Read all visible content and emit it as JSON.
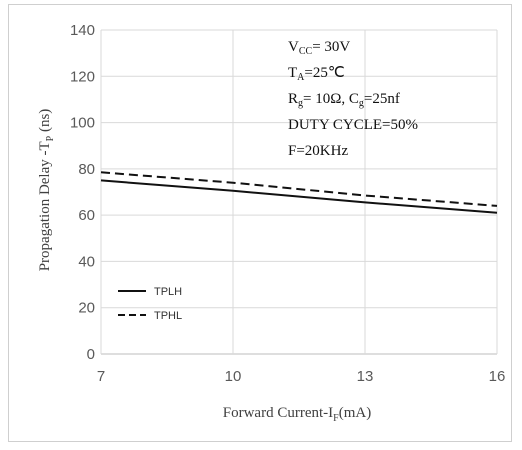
{
  "chart_data": {
    "type": "line",
    "xlabel": "Forward Current-I",
    "xlabel_sub": "F",
    "xlabel_unit": "(mA)",
    "ylabel": "Propagation Delay -T",
    "ylabel_sub": "P",
    "ylabel_unit": " (ns)",
    "xlim": [
      7,
      16
    ],
    "ylim": [
      0,
      140
    ],
    "xticks": [
      7,
      10,
      13,
      16
    ],
    "yticks": [
      0,
      20,
      40,
      60,
      80,
      100,
      120,
      140
    ],
    "grid": true,
    "legend_position": "bottom-left",
    "series": [
      {
        "name": "TPLH",
        "style": "solid",
        "x": [
          7,
          10,
          13,
          16
        ],
        "y": [
          75,
          70.5,
          65.5,
          61
        ]
      },
      {
        "name": "TPHL",
        "style": "dashed",
        "x": [
          7,
          10,
          13,
          16
        ],
        "y": [
          78.5,
          74,
          68.5,
          64
        ]
      }
    ],
    "conditions": [
      {
        "parts": [
          {
            "t": "V"
          },
          {
            "t": "CC",
            "sub": true
          },
          {
            "t": "= 30V"
          }
        ]
      },
      {
        "parts": [
          {
            "t": "T"
          },
          {
            "t": "A",
            "sub": true
          },
          {
            "t": "=25℃"
          }
        ]
      },
      {
        "parts": [
          {
            "t": "R"
          },
          {
            "t": "g",
            "sub": true
          },
          {
            "t": "= 10Ω,    C"
          },
          {
            "t": "g",
            "sub": true
          },
          {
            "t": "=25nf"
          }
        ]
      },
      {
        "parts": [
          {
            "t": "DUTY CYCLE=50%"
          }
        ]
      },
      {
        "parts": [
          {
            "t": "F=20KHz"
          }
        ]
      }
    ]
  }
}
